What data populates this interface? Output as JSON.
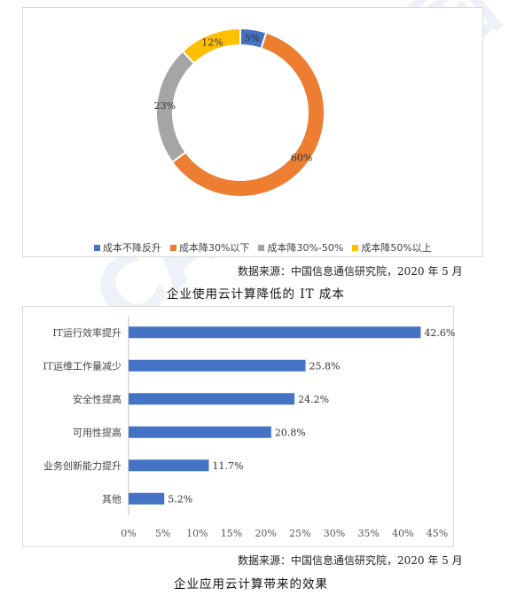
{
  "watermark": "CAICT 中国信通院",
  "source_1": "数据来源：中国信息通信研究院，2020 年 5 月",
  "caption_1": "企业使用云计算降低的 IT 成本",
  "source_2": "数据来源：中国信息通信研究院，2020 年 5 月",
  "caption_2": "企业应用云计算带来的效果",
  "chart_data": [
    {
      "type": "pie",
      "variant": "donut",
      "title": "",
      "legend_position": "bottom",
      "slices": [
        {
          "label": "成本不降反升",
          "value": 5,
          "display": "5%",
          "color": "#4472c4"
        },
        {
          "label": "成本降30%以下",
          "value": 60,
          "display": "60%",
          "color": "#ed7d31"
        },
        {
          "label": "成本降30%-50%",
          "value": 23,
          "display": "23%",
          "color": "#a5a5a5"
        },
        {
          "label": "成本降50%以上",
          "value": 12,
          "display": "12%",
          "color": "#ffc000"
        }
      ]
    },
    {
      "type": "bar",
      "orientation": "horizontal",
      "title": "",
      "xlabel": "",
      "ylabel": "",
      "color": "#4472c4",
      "categories": [
        "IT运行效率提升",
        "IT运维工作量减少",
        "安全性提高",
        "可用性提高",
        "业务创新能力提升",
        "其他"
      ],
      "values": [
        42.6,
        25.8,
        24.2,
        20.8,
        11.7,
        5.2
      ],
      "value_labels": [
        "42.6%",
        "25.8%",
        "24.2%",
        "20.8%",
        "11.7%",
        "5.2%"
      ],
      "xlim": [
        0,
        45
      ],
      "xticks": [
        0,
        5,
        10,
        15,
        20,
        25,
        30,
        35,
        40,
        45
      ],
      "xtick_labels": [
        "0%",
        "5%",
        "10%",
        "15%",
        "20%",
        "25%",
        "30%",
        "35%",
        "40%",
        "45%"
      ],
      "grid": false
    }
  ]
}
